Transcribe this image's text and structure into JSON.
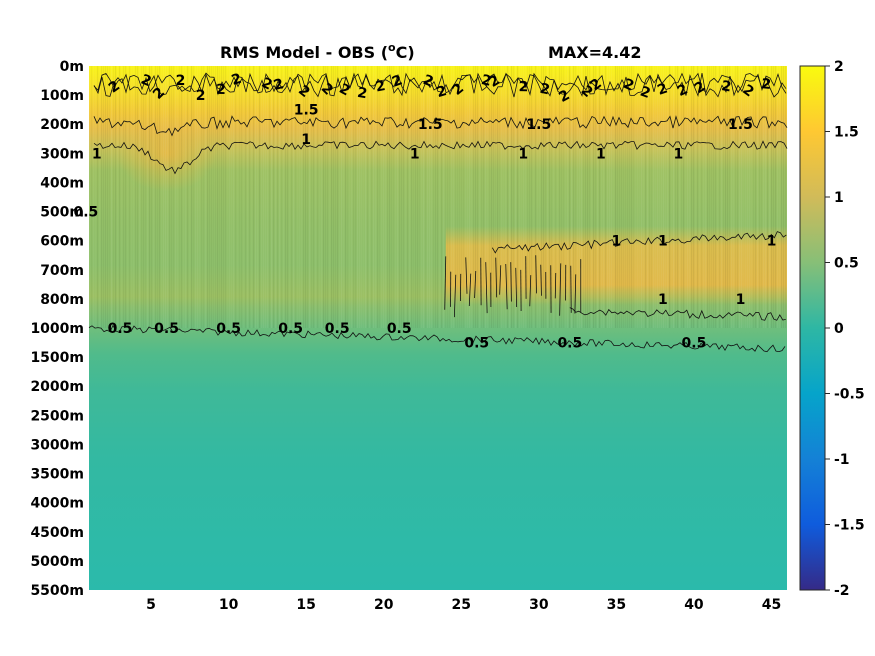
{
  "chart_data": {
    "type": "heatmap",
    "title": "RMS Model - OBS (",
    "title_sup": "o",
    "title_unit": "C)",
    "max_label": "MAX=4.42",
    "x_ticks": [
      "5",
      "10",
      "15",
      "20",
      "25",
      "30",
      "35",
      "40",
      "45"
    ],
    "x_tick_values": [
      5,
      10,
      15,
      20,
      25,
      30,
      35,
      40,
      45
    ],
    "xlim": [
      1,
      46
    ],
    "y_ticks": [
      "0m",
      "100m",
      "200m",
      "300m",
      "400m",
      "500m",
      "600m",
      "700m",
      "800m",
      "1000m",
      "1500m",
      "2000m",
      "2500m",
      "3000m",
      "3500m",
      "4000m",
      "4500m",
      "5000m",
      "5500m"
    ],
    "colorbar": {
      "ticks": [
        "2",
        "1.5",
        "1",
        "0.5",
        "0",
        "-0.5",
        "-1",
        "-1.5",
        "-2"
      ],
      "range": [
        -2,
        2
      ],
      "colormap": "parula",
      "colors": [
        "#352a87",
        "#0f5cdd",
        "#1481d6",
        "#06a4ca",
        "#2eb7a4",
        "#87bf77",
        "#d1bb59",
        "#fec832",
        "#f9fb0e"
      ]
    },
    "grid": false,
    "legend": "none",
    "contour_levels": [
      0.5,
      1,
      1.5,
      2
    ],
    "contour_labels": [
      {
        "text": "1.5",
        "x": 15,
        "depth": "100m-200m"
      },
      {
        "text": "1.5",
        "x": 23,
        "depth": "200m"
      },
      {
        "text": "1.5",
        "x": 30,
        "depth": "200m"
      },
      {
        "text": "1.5",
        "x": 43,
        "depth": "200m"
      },
      {
        "text": "1",
        "x": 1.5,
        "depth": "300m"
      },
      {
        "text": "1",
        "x": 15,
        "depth": "200m-300m"
      },
      {
        "text": "1",
        "x": 22,
        "depth": "300m"
      },
      {
        "text": "1",
        "x": 29,
        "depth": "300m"
      },
      {
        "text": "1",
        "x": 34,
        "depth": "300m"
      },
      {
        "text": "1",
        "x": 39,
        "depth": "300m"
      },
      {
        "text": "1",
        "x": 35,
        "depth": "600m"
      },
      {
        "text": "1",
        "x": 38,
        "depth": "600m"
      },
      {
        "text": "1",
        "x": 45,
        "depth": "600m"
      },
      {
        "text": "1",
        "x": 38,
        "depth": "800m"
      },
      {
        "text": "1",
        "x": 43,
        "depth": "800m"
      },
      {
        "text": "0.5",
        "x": 0.8,
        "depth": "500m"
      },
      {
        "text": "0.5",
        "x": 3,
        "depth": "1000m"
      },
      {
        "text": "0.5",
        "x": 6,
        "depth": "1000m"
      },
      {
        "text": "0.5",
        "x": 10,
        "depth": "1000m"
      },
      {
        "text": "0.5",
        "x": 14,
        "depth": "1000m"
      },
      {
        "text": "0.5",
        "x": 17,
        "depth": "1000m"
      },
      {
        "text": "0.5",
        "x": 21,
        "depth": "1000m"
      },
      {
        "text": "0.5",
        "x": 26,
        "depth": "1000m-1500m"
      },
      {
        "text": "0.5",
        "x": 32,
        "depth": "1000m-1500m"
      },
      {
        "text": "0.5",
        "x": 40,
        "depth": "1000m-1500m"
      }
    ]
  }
}
